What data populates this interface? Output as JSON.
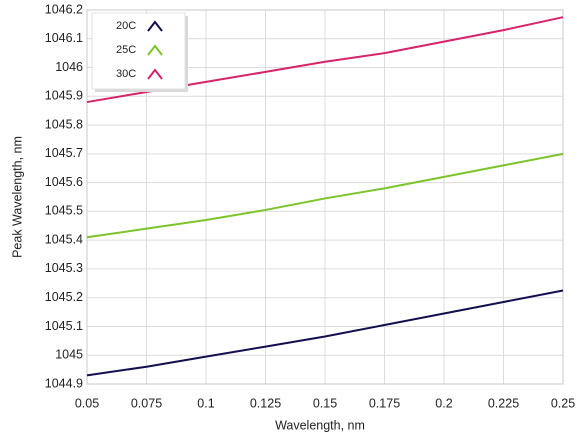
{
  "chart_data": {
    "type": "line",
    "x_label": "Wavelength, nm",
    "y_label": "Peak Wavelength, nm",
    "x": [
      0.05,
      0.075,
      0.1,
      0.125,
      0.15,
      0.175,
      0.2,
      0.225,
      0.25
    ],
    "series": [
      {
        "name": "20C",
        "color": "#10104f",
        "values": [
          1044.93,
          1044.96,
          1044.995,
          1045.03,
          1045.065,
          1045.105,
          1045.145,
          1045.185,
          1045.225
        ]
      },
      {
        "name": "25C",
        "color": "#7cc42b",
        "values": [
          1045.41,
          1045.44,
          1045.47,
          1045.505,
          1045.545,
          1045.58,
          1045.62,
          1045.66,
          1045.7
        ]
      },
      {
        "name": "30C",
        "color": "#d6236c",
        "values": [
          1045.88,
          1045.915,
          1045.95,
          1045.985,
          1046.02,
          1046.05,
          1046.09,
          1046.13,
          1046.175
        ]
      }
    ],
    "xlim": [
      0.05,
      0.25
    ],
    "xticks": [
      0.05,
      0.075,
      0.1,
      0.125,
      0.15,
      0.175,
      0.2,
      0.225,
      0.25
    ],
    "ylim": [
      1044.9,
      1046.2
    ],
    "yticks": [
      1044.9,
      1045,
      1045.1,
      1045.2,
      1045.3,
      1045.4,
      1045.5,
      1045.6,
      1045.7,
      1045.8,
      1045.9,
      1046,
      1046.1,
      1046.2
    ],
    "grid": true,
    "legend": "upper-left"
  }
}
